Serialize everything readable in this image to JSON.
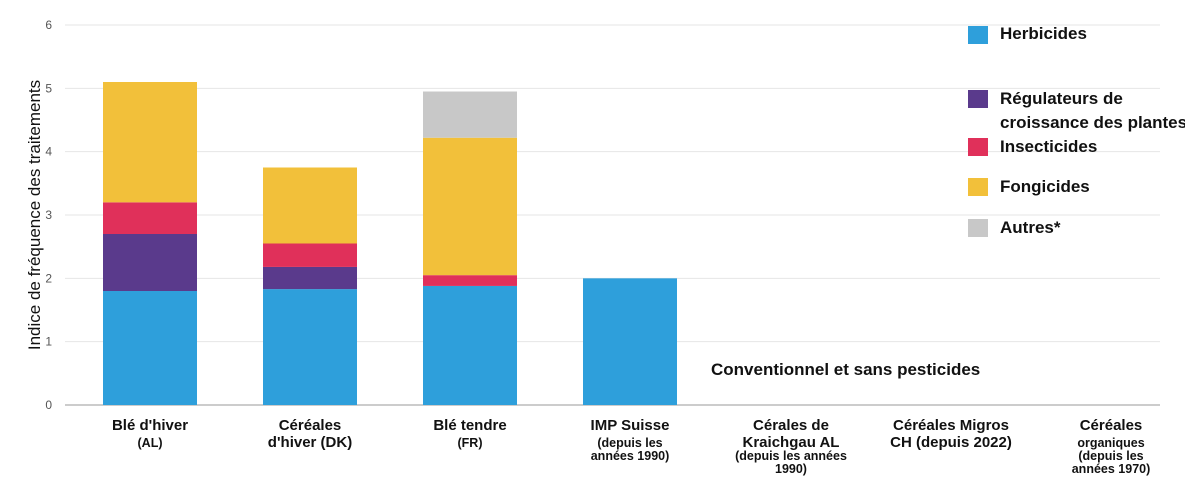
{
  "chart_data": {
    "type": "bar",
    "stacked": true,
    "ylabel": "Indice de fréquence des traitements",
    "ylim": [
      0,
      6
    ],
    "yticks": [
      "0",
      "1",
      "2",
      "3",
      "4",
      "5",
      "6"
    ],
    "grid": true,
    "legend_position": "top-right",
    "categories": [
      {
        "label": "Blé d'hiver",
        "sub": [
          "(AL)"
        ]
      },
      {
        "label": "Céréales",
        "sub": [
          "d'hiver (DK)"
        ]
      },
      {
        "label": "Blé tendre",
        "sub": [
          "(FR)"
        ]
      },
      {
        "label": "IMP Suisse",
        "sub": [
          "(depuis les",
          "années 1990)"
        ]
      },
      {
        "label": "Cérales de",
        "sub": [
          "Kraichgau AL",
          "(depuis les années",
          "1990)"
        ]
      },
      {
        "label": "Céréales Migros",
        "sub": [
          "CH (depuis 2022)"
        ]
      },
      {
        "label": "Céréales",
        "sub": [
          "organiques",
          "(depuis les",
          "années 1970)"
        ]
      }
    ],
    "series": [
      {
        "name": "Herbicides",
        "color": "#2e9fdb",
        "values": [
          1.8,
          1.83,
          1.88,
          2.0,
          0,
          0,
          0
        ]
      },
      {
        "name": "Régulateurs de croissance des plantes",
        "color": "#5a3a8c",
        "values": [
          0.9,
          0.35,
          0,
          0,
          0,
          0,
          0
        ]
      },
      {
        "name": "Insecticides",
        "color": "#e0305a",
        "values": [
          0.5,
          0.37,
          0.17,
          0,
          0,
          0,
          0
        ]
      },
      {
        "name": "Fongicides",
        "color": "#f2c03a",
        "values": [
          1.9,
          1.2,
          2.17,
          0,
          0,
          0,
          0
        ]
      },
      {
        "name": "Autres*",
        "color": "#c8c8c8",
        "values": [
          0,
          0,
          0.73,
          0,
          0,
          0,
          0
        ]
      }
    ],
    "legend": [
      {
        "lines": [
          "Herbicides"
        ],
        "color": "#2e9fdb"
      },
      {
        "lines": [
          "Régulateurs de",
          "croissance des plantes"
        ],
        "color": "#5a3a8c"
      },
      {
        "lines": [
          "Insecticides"
        ],
        "color": "#e0305a"
      },
      {
        "lines": [
          "Fongicides"
        ],
        "color": "#f2c03a"
      },
      {
        "lines": [
          "Autres*"
        ],
        "color": "#c8c8c8"
      }
    ],
    "annotation": "Conventionnel et sans pesticides"
  }
}
